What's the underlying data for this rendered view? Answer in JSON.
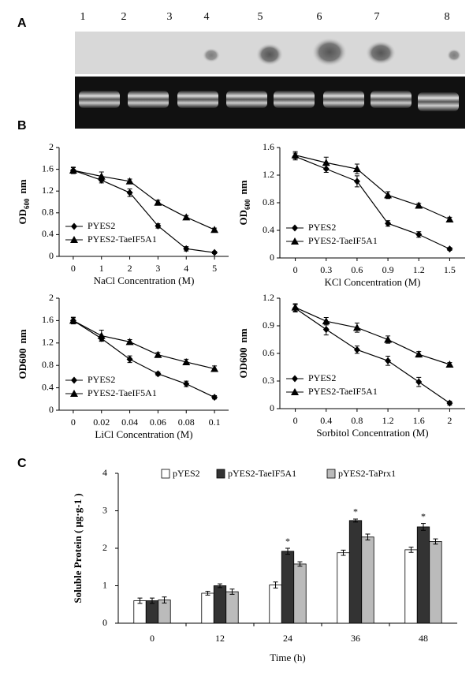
{
  "panels": [
    "A",
    "B",
    "C"
  ],
  "lanes": [
    "1",
    "2",
    "3",
    "4",
    "5",
    "6",
    "7",
    "8"
  ],
  "chart_data": [
    {
      "type": "line",
      "x_label": "NaCl Concentration (M)",
      "y_label": "OD",
      "y_label_sub": "600",
      "y_label_unit": "nm",
      "x": [
        0,
        1,
        2,
        3,
        4,
        5
      ],
      "xlim": [
        -0.5,
        5.5
      ],
      "xticks": [
        0,
        1,
        2,
        3,
        4,
        5
      ],
      "ylim": [
        0,
        2
      ],
      "yticks": [
        0,
        0.4,
        0.8,
        1.2,
        1.6,
        2
      ],
      "legend": "lower left",
      "series": [
        {
          "name": "PYES2",
          "color": "#000000",
          "marker": "diamond",
          "values": [
            1.58,
            1.4,
            1.17,
            0.56,
            0.14,
            0.07
          ],
          "errors": [
            0.06,
            0.05,
            0.07,
            0.04,
            0.04,
            0.02
          ]
        },
        {
          "name": "PYES2-TaeIF5A1",
          "color": "#000000",
          "marker": "triangle",
          "values": [
            1.58,
            1.47,
            1.38,
            0.99,
            0.72,
            0.49
          ],
          "errors": [
            0.05,
            0.08,
            0.04,
            0.04,
            0.03,
            0.03
          ]
        }
      ]
    },
    {
      "type": "line",
      "x_label": "KCl Concentration (M)",
      "y_label": "OD",
      "y_label_sub": "600",
      "y_label_unit": "nm",
      "x": [
        0,
        0.3,
        0.6,
        0.9,
        1.2,
        1.5
      ],
      "xlim": [
        -0.15,
        1.65
      ],
      "xticks": [
        0,
        0.3,
        0.6,
        0.9,
        1.2,
        1.5
      ],
      "ylim": [
        0,
        1.6
      ],
      "yticks": [
        0,
        0.4,
        0.8,
        1.2,
        1.6
      ],
      "legend": "lower left",
      "series": [
        {
          "name": "PYES2",
          "color": "#000000",
          "marker": "diamond",
          "values": [
            1.47,
            1.29,
            1.11,
            0.5,
            0.34,
            0.13
          ],
          "errors": [
            0.05,
            0.05,
            0.08,
            0.04,
            0.04,
            0.02
          ]
        },
        {
          "name": "PYES2-TaeIF5A1",
          "color": "#000000",
          "marker": "triangle",
          "values": [
            1.49,
            1.38,
            1.29,
            0.91,
            0.76,
            0.56
          ],
          "errors": [
            0.05,
            0.08,
            0.07,
            0.05,
            0.03,
            0.03
          ]
        }
      ]
    },
    {
      "type": "line",
      "x_label": "LiCl Concentration (M)",
      "y_label": "OD600",
      "y_label_unit": "nm",
      "x": [
        0,
        0.02,
        0.04,
        0.06,
        0.08,
        0.1
      ],
      "xlim": [
        -0.01,
        0.11
      ],
      "xticks": [
        0,
        0.02,
        0.04,
        0.06,
        0.08,
        0.1
      ],
      "ylim": [
        0,
        2
      ],
      "yticks": [
        0,
        0.4,
        0.8,
        1.2,
        1.6,
        2
      ],
      "legend": "lower left",
      "series": [
        {
          "name": "PYES2",
          "color": "#000000",
          "marker": "diamond",
          "values": [
            1.6,
            1.28,
            0.91,
            0.65,
            0.47,
            0.23
          ],
          "errors": [
            0.06,
            0.04,
            0.06,
            0.03,
            0.05,
            0.03
          ]
        },
        {
          "name": "PYES2-TaeIF5A1",
          "color": "#000000",
          "marker": "triangle",
          "values": [
            1.6,
            1.33,
            1.22,
            0.99,
            0.86,
            0.74
          ],
          "errors": [
            0.05,
            0.1,
            0.04,
            0.04,
            0.05,
            0.05
          ]
        }
      ]
    },
    {
      "type": "line",
      "x_label": "Sorbitol Concentration (M)",
      "y_label": "OD600",
      "y_label_unit": "nm",
      "x": [
        0,
        0.4,
        0.8,
        1.2,
        1.6,
        2
      ],
      "xlim": [
        -0.2,
        2.2
      ],
      "xticks": [
        0,
        0.4,
        0.8,
        1.2,
        1.6,
        2
      ],
      "ylim": [
        0,
        1.2
      ],
      "yticks": [
        0,
        0.3,
        0.6,
        0.9,
        1.2
      ],
      "legend": "lower left",
      "series": [
        {
          "name": "PYES2",
          "color": "#000000",
          "marker": "diamond",
          "values": [
            1.09,
            0.86,
            0.64,
            0.52,
            0.29,
            0.06
          ],
          "errors": [
            0.04,
            0.06,
            0.04,
            0.05,
            0.05,
            0.02
          ]
        },
        {
          "name": "PYES2-TaeIF5A1",
          "color": "#000000",
          "marker": "triangle",
          "values": [
            1.1,
            0.95,
            0.88,
            0.75,
            0.59,
            0.48
          ],
          "errors": [
            0.04,
            0.04,
            0.05,
            0.04,
            0.03,
            0.02
          ]
        }
      ]
    },
    {
      "type": "bar",
      "x_label": "Time (h)",
      "y_label": "Soluble Protein ( μg·g-1 )",
      "categories": [
        "0",
        "12",
        "24",
        "36",
        "48"
      ],
      "ylim": [
        0,
        4
      ],
      "yticks": [
        0,
        1,
        2,
        3,
        4
      ],
      "legend": "top",
      "series": [
        {
          "name": "pYES2",
          "color": "#ffffff",
          "values": [
            0.6,
            0.8,
            1.02,
            1.88,
            1.96
          ],
          "errors": [
            0.07,
            0.05,
            0.08,
            0.07,
            0.07
          ]
        },
        {
          "name": "pYES2-TaeIF5A1",
          "color": "#333333",
          "values": [
            0.6,
            1.0,
            1.92,
            2.74,
            2.57
          ],
          "errors": [
            0.07,
            0.05,
            0.08,
            0.04,
            0.09
          ],
          "significance": [
            null,
            null,
            "*",
            "*",
            "*"
          ]
        },
        {
          "name": "pYES2-TaPrx1",
          "color": "#bbbbbb",
          "values": [
            0.62,
            0.84,
            1.58,
            2.3,
            2.18
          ],
          "errors": [
            0.08,
            0.07,
            0.06,
            0.08,
            0.07
          ]
        }
      ]
    }
  ]
}
